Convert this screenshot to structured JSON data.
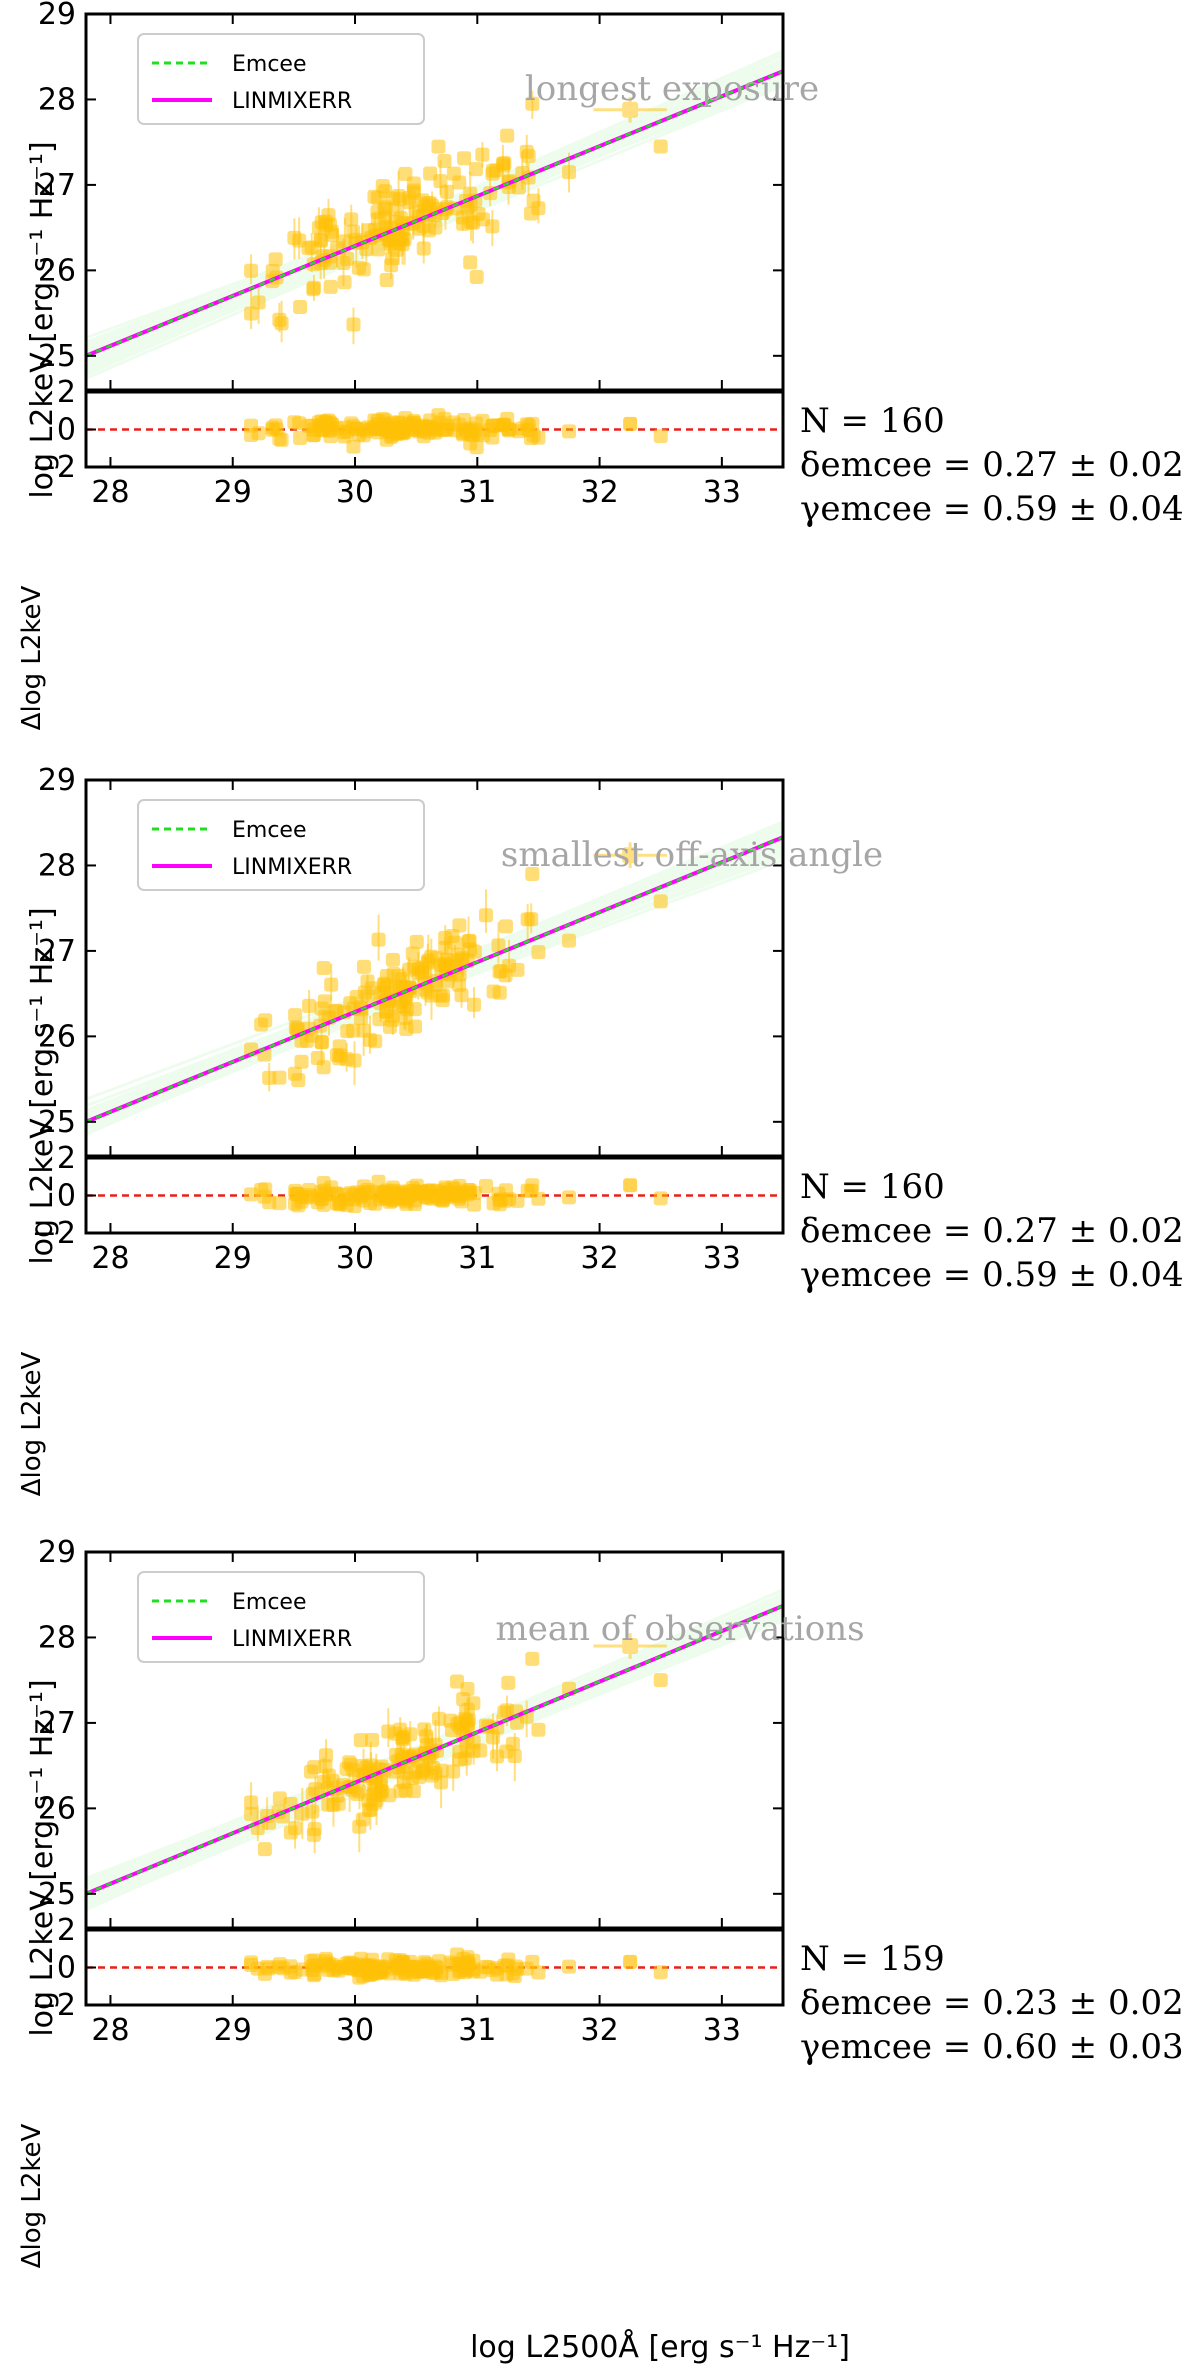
{
  "figure": {
    "ylabel_main": "log L2keV [erg s⁻¹ Hz⁻¹]",
    "ylabel_resid": "Δlog L2keV",
    "xlabel": "log L2500Å [erg s⁻¹ Hz⁻¹]",
    "legend": [
      "Emcee",
      "LINMIXERR"
    ],
    "colors": {
      "emcee": "#22dd22",
      "linmixerr": "#ff00ff",
      "points": "#ffc107",
      "zero_line": "#e8201a",
      "chains": "#b6f5b6",
      "title": "#a6a6a6"
    }
  },
  "chart_data": [
    {
      "type": "scatter",
      "title": "longest exposure",
      "N_text": "N = 160",
      "delta_text": "δemcee = 0.27 ± 0.02",
      "gamma_text": "γemcee = 0.59 ± 0.04",
      "N": 160,
      "delta": 0.27,
      "delta_err": 0.02,
      "gamma": 0.59,
      "gamma_err": 0.04,
      "xlim": [
        27.8,
        33.5
      ],
      "ylim": [
        24.6,
        29.0
      ],
      "resid_ylim": [
        -2,
        2
      ],
      "x_ticks": [
        "28",
        "29",
        "30",
        "31",
        "32",
        "33"
      ],
      "y_ticks": [
        "25",
        "26",
        "27",
        "28",
        "29"
      ],
      "resid_ticks": [
        "−2",
        "0",
        "2"
      ],
      "fit": {
        "x1": 27.8,
        "y1": 25.0,
        "x2": 33.5,
        "y2": 28.33
      },
      "errbar_point": {
        "x": 32.25,
        "y": 27.88,
        "xerr": 0.3,
        "yerr": 0.15
      },
      "highlights": [
        [
          31.45,
          27.95
        ],
        [
          32.5,
          27.45
        ],
        [
          31.75,
          27.15
        ]
      ],
      "resid_highlights": [
        [
          32.25,
          0.3
        ],
        [
          32.5,
          -0.35
        ],
        [
          31.75,
          -0.1
        ]
      ],
      "n_scatter": 160
    },
    {
      "type": "scatter",
      "title": "smallest off-axis angle",
      "N_text": "N = 160",
      "delta_text": "δemcee = 0.27 ± 0.02",
      "gamma_text": "γemcee = 0.59 ± 0.04",
      "N": 160,
      "delta": 0.27,
      "delta_err": 0.02,
      "gamma": 0.59,
      "gamma_err": 0.04,
      "xlim": [
        27.8,
        33.5
      ],
      "ylim": [
        24.6,
        29.0
      ],
      "resid_ylim": [
        -2,
        2
      ],
      "x_ticks": [
        "28",
        "29",
        "30",
        "31",
        "32",
        "33"
      ],
      "y_ticks": [
        "25",
        "26",
        "27",
        "28",
        "29"
      ],
      "resid_ticks": [
        "−2",
        "0",
        "2"
      ],
      "fit": {
        "x1": 27.8,
        "y1": 25.0,
        "x2": 33.5,
        "y2": 28.33
      },
      "errbar_point": {
        "x": 32.25,
        "y": 28.12,
        "xerr": 0.3,
        "yerr": 0.15
      },
      "highlights": [
        [
          31.45,
          27.9
        ],
        [
          32.5,
          27.58
        ],
        [
          31.75,
          27.12
        ]
      ],
      "resid_highlights": [
        [
          32.25,
          0.55
        ],
        [
          32.5,
          -0.15
        ],
        [
          31.75,
          -0.1
        ]
      ],
      "n_scatter": 160
    },
    {
      "type": "scatter",
      "title": "mean of observations",
      "N_text": "N = 159",
      "delta_text": "δemcee = 0.23 ± 0.02",
      "gamma_text": "γemcee = 0.60 ± 0.03",
      "N": 159,
      "delta": 0.23,
      "delta_err": 0.02,
      "gamma": 0.6,
      "gamma_err": 0.03,
      "xlim": [
        27.8,
        33.5
      ],
      "ylim": [
        24.6,
        29.0
      ],
      "resid_ylim": [
        -2,
        2
      ],
      "x_ticks": [
        "28",
        "29",
        "30",
        "31",
        "32",
        "33"
      ],
      "y_ticks": [
        "25",
        "26",
        "27",
        "28",
        "29"
      ],
      "resid_ticks": [
        "−2",
        "0",
        "2"
      ],
      "fit": {
        "x1": 27.8,
        "y1": 25.0,
        "x2": 33.5,
        "y2": 28.37
      },
      "errbar_point": {
        "x": 32.25,
        "y": 27.9,
        "xerr": 0.3,
        "yerr": 0.15
      },
      "highlights": [
        [
          31.45,
          27.75
        ],
        [
          32.5,
          27.5
        ],
        [
          31.75,
          27.4
        ]
      ],
      "resid_highlights": [
        [
          32.25,
          0.3
        ],
        [
          32.5,
          -0.25
        ],
        [
          31.75,
          0.05
        ]
      ],
      "n_scatter": 159
    }
  ]
}
